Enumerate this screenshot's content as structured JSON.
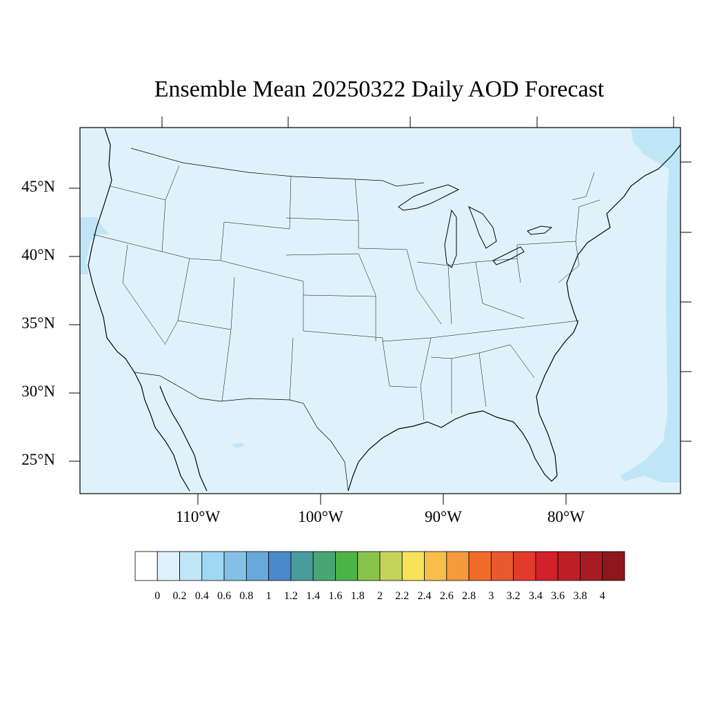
{
  "title": "Ensemble Mean 20250322 Daily AOD Forecast",
  "map": {
    "lat_labels": [
      "45°N",
      "40°N",
      "35°N",
      "30°N",
      "25°N"
    ],
    "lat_values": [
      45,
      40,
      35,
      30,
      25
    ],
    "lon_labels": [
      "110°W",
      "100°W",
      "90°W",
      "80°W"
    ],
    "lon_values": [
      -110,
      -100,
      -90,
      -80
    ],
    "background_aod_color": "#dff2fb",
    "higher_aod_color": "#bfe6f7",
    "border_color": "#000000"
  },
  "colorbar": {
    "labels": [
      "0",
      "0.2",
      "0.4",
      "0.6",
      "0.8",
      "1",
      "1.2",
      "1.4",
      "1.6",
      "1.8",
      "2",
      "2.2",
      "2.4",
      "2.6",
      "2.8",
      "3",
      "3.2",
      "3.4",
      "3.6",
      "3.8",
      "4"
    ],
    "colors": [
      "#ffffff",
      "#dff2fb",
      "#bfe6f7",
      "#a0d8f3",
      "#84c1e6",
      "#68a8da",
      "#4a8acb",
      "#4a9b9c",
      "#48a574",
      "#4cb348",
      "#88c44b",
      "#c4d45a",
      "#f7e35b",
      "#f7bf4a",
      "#f59a3d",
      "#f36b2b",
      "#e85a2d",
      "#e03b2b",
      "#d22129",
      "#be1f26",
      "#a61c22",
      "#8e171c"
    ]
  }
}
